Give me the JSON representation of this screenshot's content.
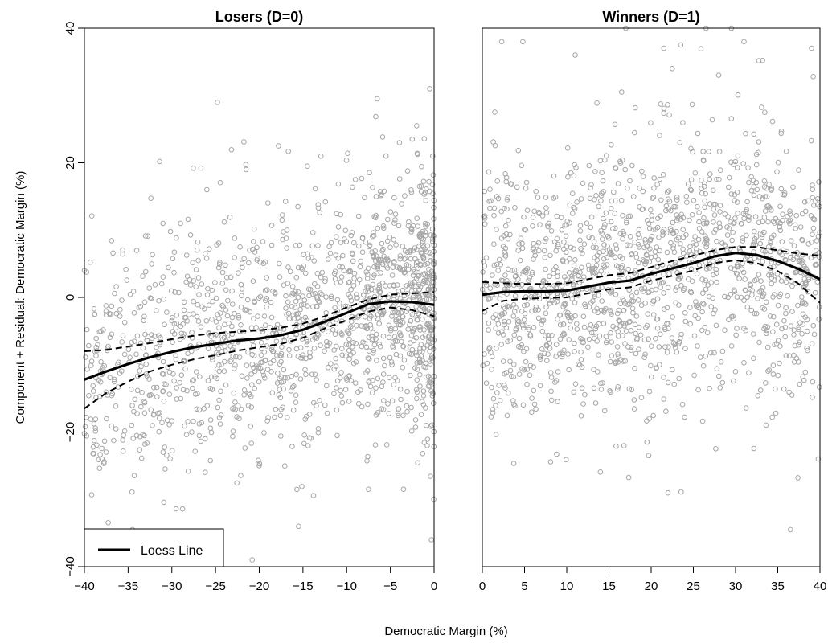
{
  "chart_data": {
    "type": "scatter",
    "ylabel": "Component + Residual: Democratic Margin (%)",
    "xlabel": "Democratic Margin (%)",
    "ylim": [
      -40,
      40
    ],
    "yticks": [
      -40,
      -20,
      0,
      20,
      40
    ],
    "legend": {
      "label": "Loess Line",
      "placement": "bottom-left"
    },
    "colors": {
      "points": "#a6a6a6",
      "line": "#000000"
    },
    "panels": [
      {
        "title": "Losers (D=0)",
        "xlim": [
          -40,
          0
        ],
        "xticks": [
          -40,
          -35,
          -30,
          -25,
          -20,
          -15,
          -10,
          -5,
          0
        ],
        "point_cloud": {
          "count": 1500,
          "outliers": [
            [
              -40,
              4
            ],
            [
              -38,
              -24
            ],
            [
              -34.5,
              -34.5
            ],
            [
              -26,
              16
            ],
            [
              -21.5,
              19
            ],
            [
              -17.8,
              22.5
            ],
            [
              -15.5,
              -34
            ],
            [
              -14.5,
              19.5
            ],
            [
              -7.5,
              -28.5
            ],
            [
              -6.5,
              29.5
            ],
            [
              -3.5,
              -28.5
            ],
            [
              -2,
              25.5
            ],
            [
              -0.5,
              31
            ],
            [
              -0.3,
              -36
            ],
            [
              -31,
              -23
            ],
            [
              -29,
              11
            ],
            [
              -20,
              -25
            ],
            [
              -9,
              17.5
            ],
            [
              -5.5,
              21
            ],
            [
              -2.5,
              23.5
            ]
          ]
        },
        "loess": {
          "x": [
            -40,
            -37.5,
            -35,
            -32.5,
            -30,
            -27.5,
            -25,
            -22.5,
            -20,
            -17.5,
            -15,
            -12.5,
            -10,
            -7.5,
            -5,
            -2.5,
            0
          ],
          "y": [
            -12.2,
            -11.0,
            -9.9,
            -8.9,
            -8.1,
            -7.4,
            -6.9,
            -6.4,
            -6.1,
            -5.6,
            -4.8,
            -3.6,
            -2.3,
            -1.0,
            -0.6,
            -0.7,
            -1.1
          ]
        },
        "upper_band": {
          "x": [
            -40,
            -37.5,
            -35,
            -32.5,
            -30,
            -27.5,
            -25,
            -22.5,
            -20,
            -17.5,
            -15,
            -12.5,
            -10,
            -7.5,
            -5,
            -2.5,
            0
          ],
          "y": [
            -8.0,
            -7.8,
            -7.3,
            -6.8,
            -6.2,
            -5.7,
            -5.3,
            -5.1,
            -4.9,
            -4.5,
            -3.9,
            -2.8,
            -1.5,
            -0.3,
            0.4,
            0.6,
            0.8
          ]
        },
        "lower_band": {
          "x": [
            -40,
            -37.5,
            -35,
            -32.5,
            -30,
            -27.5,
            -25,
            -22.5,
            -20,
            -17.5,
            -15,
            -12.5,
            -10,
            -7.5,
            -5,
            -2.5,
            0
          ],
          "y": [
            -16.5,
            -14.2,
            -12.5,
            -11.0,
            -10.0,
            -9.2,
            -8.6,
            -7.9,
            -7.4,
            -6.9,
            -6.0,
            -4.6,
            -3.4,
            -2.1,
            -1.5,
            -1.9,
            -2.8
          ]
        }
      },
      {
        "title": "Winners (D=1)",
        "xlim": [
          0,
          40
        ],
        "xticks": [
          0,
          5,
          10,
          15,
          20,
          25,
          30,
          35,
          40
        ],
        "point_cloud": {
          "count": 1500,
          "outliers": [
            [
              2.3,
              38
            ],
            [
              4.8,
              38
            ],
            [
              11,
              36
            ],
            [
              17,
              40
            ],
            [
              21.5,
              37
            ],
            [
              22.5,
              34
            ],
            [
              23.5,
              37.5
            ],
            [
              26.5,
              40
            ],
            [
              29.5,
              40
            ],
            [
              31,
              38
            ],
            [
              33.2,
              35.2
            ],
            [
              39,
              37
            ],
            [
              39.2,
              32.8
            ],
            [
              36.5,
              -34.5
            ],
            [
              39.8,
              -24
            ],
            [
              19.7,
              -23.5
            ],
            [
              19.5,
              -21.5
            ],
            [
              28,
              33
            ],
            [
              16.5,
              30.5
            ]
          ]
        },
        "loess": {
          "x": [
            0,
            2.5,
            5,
            7.5,
            10,
            12.5,
            15,
            17.5,
            20,
            22.5,
            25,
            27.5,
            30,
            32.5,
            35,
            37.5,
            40
          ],
          "y": [
            0.4,
            0.8,
            0.9,
            0.9,
            1.0,
            1.6,
            2.2,
            2.5,
            3.5,
            4.3,
            5.1,
            6.1,
            6.6,
            6.3,
            5.4,
            4.2,
            2.7
          ]
        },
        "upper_band": {
          "x": [
            0,
            2.5,
            5,
            7.5,
            10,
            12.5,
            15,
            17.5,
            20,
            22.5,
            25,
            27.5,
            30,
            32.5,
            35,
            37.5,
            40
          ],
          "y": [
            2.3,
            2.1,
            2.0,
            2.0,
            2.1,
            2.7,
            3.3,
            3.6,
            4.5,
            5.4,
            6.2,
            7.0,
            7.5,
            7.5,
            7.0,
            6.5,
            6.2
          ]
        },
        "lower_band": {
          "x": [
            0,
            2.5,
            5,
            7.5,
            10,
            12.5,
            15,
            17.5,
            20,
            22.5,
            25,
            27.5,
            30,
            32.5,
            35,
            37.5,
            40
          ],
          "y": [
            -2.0,
            -0.5,
            -0.2,
            -0.1,
            0.0,
            0.6,
            1.2,
            1.5,
            2.5,
            3.2,
            4.0,
            5.1,
            5.5,
            5.1,
            3.9,
            2.0,
            -0.8
          ]
        }
      }
    ]
  }
}
